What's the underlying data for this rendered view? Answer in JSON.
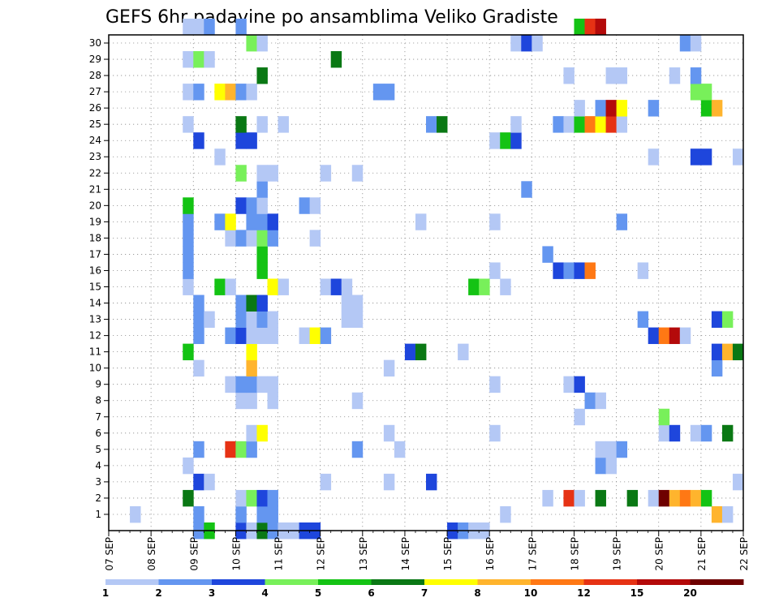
{
  "chart_data": {
    "type": "heatmap",
    "title": "GEFS 6hr padavine po ansamblima Veliko Gradiste",
    "x_tick_labels": [
      "07 SEP",
      "08 SEP",
      "09 SEP",
      "10 SEP",
      "11 SEP",
      "12 SEP",
      "13 SEP",
      "14 SEP",
      "15 SEP",
      "16 SEP",
      "17 SEP",
      "18 SEP",
      "19 SEP",
      "20 SEP",
      "21 SEP",
      "22 SEP"
    ],
    "y_tick_labels": [
      "1",
      "2",
      "3",
      "4",
      "5",
      "6",
      "7",
      "8",
      "9",
      "10",
      "11",
      "12",
      "13",
      "14",
      "15",
      "16",
      "17",
      "18",
      "19",
      "20",
      "21",
      "22",
      "23",
      "24",
      "25",
      "26",
      "27",
      "28",
      "29",
      "30"
    ],
    "x_range": [
      "07 SEP 00z",
      "22 SEP 00z"
    ],
    "y_range": [
      0,
      30
    ],
    "time_step_hours": 6,
    "grid": true,
    "colorbar": {
      "placement": "bottom",
      "tick_labels": [
        "1",
        "2",
        "3",
        "4",
        "5",
        "6",
        "7",
        "8",
        "10",
        "12",
        "15",
        "20"
      ],
      "colors": [
        "#b4c8f5",
        "#6496f0",
        "#1e46dc",
        "#78f05a",
        "#14c314",
        "#0a7814",
        "#ffff00",
        "#ffb42d",
        "#ff7814",
        "#e63214",
        "#b40a0a",
        "#6e0000"
      ]
    },
    "cells": [
      {
        "t": 8,
        "m": 0,
        "c": 2
      },
      {
        "t": 9,
        "m": 0,
        "c": 5
      },
      {
        "t": 12,
        "m": 0,
        "c": 3
      },
      {
        "t": 13,
        "m": 0,
        "c": 1
      },
      {
        "t": 14,
        "m": 0,
        "c": 6
      },
      {
        "t": 15,
        "m": 0,
        "c": 2
      },
      {
        "t": 16,
        "m": 0,
        "c": 1
      },
      {
        "t": 17,
        "m": 0,
        "c": 1
      },
      {
        "t": 18,
        "m": 0,
        "c": 3
      },
      {
        "t": 19,
        "m": 0,
        "c": 3
      },
      {
        "t": 32,
        "m": 0,
        "c": 3
      },
      {
        "t": 33,
        "m": 0,
        "c": 2
      },
      {
        "t": 34,
        "m": 0,
        "c": 1
      },
      {
        "t": 35,
        "m": 0,
        "c": 1
      },
      {
        "t": 2,
        "m": 1,
        "c": 1
      },
      {
        "t": 8,
        "m": 1,
        "c": 2
      },
      {
        "t": 12,
        "m": 1,
        "c": 2
      },
      {
        "t": 14,
        "m": 1,
        "c": 2
      },
      {
        "t": 15,
        "m": 1,
        "c": 2
      },
      {
        "t": 37,
        "m": 1,
        "c": 1
      },
      {
        "t": 57,
        "m": 1,
        "c": 8
      },
      {
        "t": 58,
        "m": 1,
        "c": 1
      },
      {
        "t": 7,
        "m": 2,
        "c": 6
      },
      {
        "t": 12,
        "m": 2,
        "c": 1
      },
      {
        "t": 13,
        "m": 2,
        "c": 4
      },
      {
        "t": 14,
        "m": 2,
        "c": 3
      },
      {
        "t": 15,
        "m": 2,
        "c": 2
      },
      {
        "t": 41,
        "m": 2,
        "c": 1
      },
      {
        "t": 43,
        "m": 2,
        "c": 10
      },
      {
        "t": 44,
        "m": 2,
        "c": 1
      },
      {
        "t": 46,
        "m": 2,
        "c": 6
      },
      {
        "t": 49,
        "m": 2,
        "c": 6
      },
      {
        "t": 51,
        "m": 2,
        "c": 1
      },
      {
        "t": 52,
        "m": 2,
        "c": 12
      },
      {
        "t": 53,
        "m": 2,
        "c": 8
      },
      {
        "t": 54,
        "m": 2,
        "c": 9
      },
      {
        "t": 55,
        "m": 2,
        "c": 8
      },
      {
        "t": 56,
        "m": 2,
        "c": 5
      },
      {
        "t": 8,
        "m": 3,
        "c": 3
      },
      {
        "t": 9,
        "m": 3,
        "c": 1
      },
      {
        "t": 20,
        "m": 3,
        "c": 1
      },
      {
        "t": 26,
        "m": 3,
        "c": 1
      },
      {
        "t": 30,
        "m": 3,
        "c": 3
      },
      {
        "t": 59,
        "m": 3,
        "c": 1
      },
      {
        "t": 7,
        "m": 4,
        "c": 1
      },
      {
        "t": 46,
        "m": 4,
        "c": 2
      },
      {
        "t": 47,
        "m": 4,
        "c": 1
      },
      {
        "t": 8,
        "m": 5,
        "c": 2
      },
      {
        "t": 11,
        "m": 5,
        "c": 10
      },
      {
        "t": 12,
        "m": 5,
        "c": 4
      },
      {
        "t": 13,
        "m": 5,
        "c": 2
      },
      {
        "t": 23,
        "m": 5,
        "c": 2
      },
      {
        "t": 27,
        "m": 5,
        "c": 1
      },
      {
        "t": 46,
        "m": 5,
        "c": 1
      },
      {
        "t": 47,
        "m": 5,
        "c": 1
      },
      {
        "t": 48,
        "m": 5,
        "c": 2
      },
      {
        "t": 13,
        "m": 6,
        "c": 1
      },
      {
        "t": 14,
        "m": 6,
        "c": 7
      },
      {
        "t": 26,
        "m": 6,
        "c": 1
      },
      {
        "t": 36,
        "m": 6,
        "c": 1
      },
      {
        "t": 52,
        "m": 6,
        "c": 1
      },
      {
        "t": 53,
        "m": 6,
        "c": 3
      },
      {
        "t": 55,
        "m": 6,
        "c": 1
      },
      {
        "t": 56,
        "m": 6,
        "c": 2
      },
      {
        "t": 58,
        "m": 6,
        "c": 6
      },
      {
        "t": 44,
        "m": 7,
        "c": 1
      },
      {
        "t": 52,
        "m": 7,
        "c": 4
      },
      {
        "t": 12,
        "m": 8,
        "c": 1
      },
      {
        "t": 13,
        "m": 8,
        "c": 1
      },
      {
        "t": 15,
        "m": 8,
        "c": 1
      },
      {
        "t": 23,
        "m": 8,
        "c": 1
      },
      {
        "t": 45,
        "m": 8,
        "c": 2
      },
      {
        "t": 46,
        "m": 8,
        "c": 1
      },
      {
        "t": 11,
        "m": 9,
        "c": 1
      },
      {
        "t": 12,
        "m": 9,
        "c": 2
      },
      {
        "t": 13,
        "m": 9,
        "c": 2
      },
      {
        "t": 14,
        "m": 9,
        "c": 1
      },
      {
        "t": 15,
        "m": 9,
        "c": 1
      },
      {
        "t": 36,
        "m": 9,
        "c": 1
      },
      {
        "t": 43,
        "m": 9,
        "c": 1
      },
      {
        "t": 44,
        "m": 9,
        "c": 3
      },
      {
        "t": 8,
        "m": 10,
        "c": 1
      },
      {
        "t": 13,
        "m": 10,
        "c": 8
      },
      {
        "t": 26,
        "m": 10,
        "c": 1
      },
      {
        "t": 57,
        "m": 10,
        "c": 2
      },
      {
        "t": 7,
        "m": 11,
        "c": 5
      },
      {
        "t": 13,
        "m": 11,
        "c": 7
      },
      {
        "t": 28,
        "m": 11,
        "c": 3
      },
      {
        "t": 29,
        "m": 11,
        "c": 6
      },
      {
        "t": 33,
        "m": 11,
        "c": 1
      },
      {
        "t": 57,
        "m": 11,
        "c": 3
      },
      {
        "t": 58,
        "m": 11,
        "c": 8
      },
      {
        "t": 59,
        "m": 11,
        "c": 6
      },
      {
        "t": 8,
        "m": 12,
        "c": 2
      },
      {
        "t": 11,
        "m": 12,
        "c": 2
      },
      {
        "t": 12,
        "m": 12,
        "c": 3
      },
      {
        "t": 13,
        "m": 12,
        "c": 1
      },
      {
        "t": 14,
        "m": 12,
        "c": 1
      },
      {
        "t": 15,
        "m": 12,
        "c": 1
      },
      {
        "t": 18,
        "m": 12,
        "c": 1
      },
      {
        "t": 19,
        "m": 12,
        "c": 7
      },
      {
        "t": 20,
        "m": 12,
        "c": 2
      },
      {
        "t": 51,
        "m": 12,
        "c": 3
      },
      {
        "t": 52,
        "m": 12,
        "c": 9
      },
      {
        "t": 53,
        "m": 12,
        "c": 11
      },
      {
        "t": 54,
        "m": 12,
        "c": 1
      },
      {
        "t": 8,
        "m": 13,
        "c": 2
      },
      {
        "t": 9,
        "m": 13,
        "c": 1
      },
      {
        "t": 12,
        "m": 13,
        "c": 2
      },
      {
        "t": 13,
        "m": 13,
        "c": 1
      },
      {
        "t": 14,
        "m": 13,
        "c": 2
      },
      {
        "t": 15,
        "m": 13,
        "c": 1
      },
      {
        "t": 22,
        "m": 13,
        "c": 1
      },
      {
        "t": 23,
        "m": 13,
        "c": 1
      },
      {
        "t": 50,
        "m": 13,
        "c": 2
      },
      {
        "t": 57,
        "m": 13,
        "c": 3
      },
      {
        "t": 58,
        "m": 13,
        "c": 4
      },
      {
        "t": 8,
        "m": 14,
        "c": 2
      },
      {
        "t": 12,
        "m": 14,
        "c": 2
      },
      {
        "t": 13,
        "m": 14,
        "c": 6
      },
      {
        "t": 14,
        "m": 14,
        "c": 3
      },
      {
        "t": 22,
        "m": 14,
        "c": 1
      },
      {
        "t": 23,
        "m": 14,
        "c": 1
      },
      {
        "t": 7,
        "m": 15,
        "c": 1
      },
      {
        "t": 10,
        "m": 15,
        "c": 5
      },
      {
        "t": 11,
        "m": 15,
        "c": 1
      },
      {
        "t": 15,
        "m": 15,
        "c": 7
      },
      {
        "t": 16,
        "m": 15,
        "c": 1
      },
      {
        "t": 20,
        "m": 15,
        "c": 1
      },
      {
        "t": 21,
        "m": 15,
        "c": 3
      },
      {
        "t": 22,
        "m": 15,
        "c": 1
      },
      {
        "t": 34,
        "m": 15,
        "c": 5
      },
      {
        "t": 35,
        "m": 15,
        "c": 4
      },
      {
        "t": 37,
        "m": 15,
        "c": 1
      },
      {
        "t": 7,
        "m": 16,
        "c": 2
      },
      {
        "t": 14,
        "m": 16,
        "c": 5
      },
      {
        "t": 36,
        "m": 16,
        "c": 1
      },
      {
        "t": 42,
        "m": 16,
        "c": 3
      },
      {
        "t": 43,
        "m": 16,
        "c": 2
      },
      {
        "t": 44,
        "m": 16,
        "c": 3
      },
      {
        "t": 45,
        "m": 16,
        "c": 9
      },
      {
        "t": 50,
        "m": 16,
        "c": 1
      },
      {
        "t": 7,
        "m": 17,
        "c": 2
      },
      {
        "t": 14,
        "m": 17,
        "c": 5
      },
      {
        "t": 41,
        "m": 17,
        "c": 2
      },
      {
        "t": 7,
        "m": 18,
        "c": 2
      },
      {
        "t": 11,
        "m": 18,
        "c": 1
      },
      {
        "t": 12,
        "m": 18,
        "c": 2
      },
      {
        "t": 13,
        "m": 18,
        "c": 1
      },
      {
        "t": 14,
        "m": 18,
        "c": 4
      },
      {
        "t": 15,
        "m": 18,
        "c": 2
      },
      {
        "t": 19,
        "m": 18,
        "c": 1
      },
      {
        "t": 7,
        "m": 19,
        "c": 2
      },
      {
        "t": 10,
        "m": 19,
        "c": 2
      },
      {
        "t": 11,
        "m": 19,
        "c": 7
      },
      {
        "t": 13,
        "m": 19,
        "c": 2
      },
      {
        "t": 14,
        "m": 19,
        "c": 2
      },
      {
        "t": 15,
        "m": 19,
        "c": 3
      },
      {
        "t": 29,
        "m": 19,
        "c": 1
      },
      {
        "t": 36,
        "m": 19,
        "c": 1
      },
      {
        "t": 48,
        "m": 19,
        "c": 2
      },
      {
        "t": 7,
        "m": 20,
        "c": 5
      },
      {
        "t": 12,
        "m": 20,
        "c": 3
      },
      {
        "t": 13,
        "m": 20,
        "c": 2
      },
      {
        "t": 14,
        "m": 20,
        "c": 1
      },
      {
        "t": 18,
        "m": 20,
        "c": 2
      },
      {
        "t": 19,
        "m": 20,
        "c": 1
      },
      {
        "t": 14,
        "m": 21,
        "c": 2
      },
      {
        "t": 39,
        "m": 21,
        "c": 2
      },
      {
        "t": 12,
        "m": 22,
        "c": 4
      },
      {
        "t": 14,
        "m": 22,
        "c": 1
      },
      {
        "t": 15,
        "m": 22,
        "c": 1
      },
      {
        "t": 20,
        "m": 22,
        "c": 1
      },
      {
        "t": 23,
        "m": 22,
        "c": 1
      },
      {
        "t": 10,
        "m": 23,
        "c": 1
      },
      {
        "t": 51,
        "m": 23,
        "c": 1
      },
      {
        "t": 55,
        "m": 23,
        "c": 3
      },
      {
        "t": 56,
        "m": 23,
        "c": 3
      },
      {
        "t": 59,
        "m": 23,
        "c": 1
      },
      {
        "t": 8,
        "m": 24,
        "c": 3
      },
      {
        "t": 12,
        "m": 24,
        "c": 3
      },
      {
        "t": 13,
        "m": 24,
        "c": 3
      },
      {
        "t": 36,
        "m": 24,
        "c": 1
      },
      {
        "t": 37,
        "m": 24,
        "c": 5
      },
      {
        "t": 38,
        "m": 24,
        "c": 3
      },
      {
        "t": 7,
        "m": 25,
        "c": 1
      },
      {
        "t": 12,
        "m": 25,
        "c": 6
      },
      {
        "t": 14,
        "m": 25,
        "c": 1
      },
      {
        "t": 16,
        "m": 25,
        "c": 1
      },
      {
        "t": 30,
        "m": 25,
        "c": 2
      },
      {
        "t": 31,
        "m": 25,
        "c": 6
      },
      {
        "t": 38,
        "m": 25,
        "c": 1
      },
      {
        "t": 42,
        "m": 25,
        "c": 2
      },
      {
        "t": 43,
        "m": 25,
        "c": 1
      },
      {
        "t": 44,
        "m": 25,
        "c": 5
      },
      {
        "t": 45,
        "m": 25,
        "c": 9
      },
      {
        "t": 46,
        "m": 25,
        "c": 7
      },
      {
        "t": 47,
        "m": 25,
        "c": 10
      },
      {
        "t": 48,
        "m": 25,
        "c": 1
      },
      {
        "t": 44,
        "m": 26,
        "c": 1
      },
      {
        "t": 46,
        "m": 26,
        "c": 2
      },
      {
        "t": 47,
        "m": 26,
        "c": 11
      },
      {
        "t": 48,
        "m": 26,
        "c": 7
      },
      {
        "t": 51,
        "m": 26,
        "c": 2
      },
      {
        "t": 56,
        "m": 26,
        "c": 5
      },
      {
        "t": 57,
        "m": 26,
        "c": 8
      },
      {
        "t": 7,
        "m": 27,
        "c": 1
      },
      {
        "t": 8,
        "m": 27,
        "c": 2
      },
      {
        "t": 10,
        "m": 27,
        "c": 7
      },
      {
        "t": 11,
        "m": 27,
        "c": 8
      },
      {
        "t": 12,
        "m": 27,
        "c": 2
      },
      {
        "t": 13,
        "m": 27,
        "c": 1
      },
      {
        "t": 25,
        "m": 27,
        "c": 2
      },
      {
        "t": 26,
        "m": 27,
        "c": 2
      },
      {
        "t": 55,
        "m": 27,
        "c": 4
      },
      {
        "t": 56,
        "m": 27,
        "c": 4
      },
      {
        "t": 14,
        "m": 28,
        "c": 6
      },
      {
        "t": 43,
        "m": 28,
        "c": 1
      },
      {
        "t": 47,
        "m": 28,
        "c": 1
      },
      {
        "t": 48,
        "m": 28,
        "c": 1
      },
      {
        "t": 53,
        "m": 28,
        "c": 1
      },
      {
        "t": 55,
        "m": 28,
        "c": 2
      },
      {
        "t": 7,
        "m": 29,
        "c": 1
      },
      {
        "t": 8,
        "m": 29,
        "c": 4
      },
      {
        "t": 9,
        "m": 29,
        "c": 1
      },
      {
        "t": 21,
        "m": 29,
        "c": 6
      },
      {
        "t": 13,
        "m": 30,
        "c": 4
      },
      {
        "t": 14,
        "m": 30,
        "c": 1
      },
      {
        "t": 38,
        "m": 30,
        "c": 1
      },
      {
        "t": 39,
        "m": 30,
        "c": 3
      },
      {
        "t": 40,
        "m": 30,
        "c": 1
      },
      {
        "t": 54,
        "m": 30,
        "c": 2
      },
      {
        "t": 55,
        "m": 30,
        "c": 1
      },
      {
        "t": 7,
        "m": 31,
        "c": 1
      },
      {
        "t": 8,
        "m": 31,
        "c": 1
      },
      {
        "t": 9,
        "m": 31,
        "c": 2
      },
      {
        "t": 12,
        "m": 31,
        "c": 2
      },
      {
        "t": 44,
        "m": 31,
        "c": 5
      },
      {
        "t": 45,
        "m": 31,
        "c": 10
      },
      {
        "t": 46,
        "m": 31,
        "c": 11
      }
    ]
  }
}
